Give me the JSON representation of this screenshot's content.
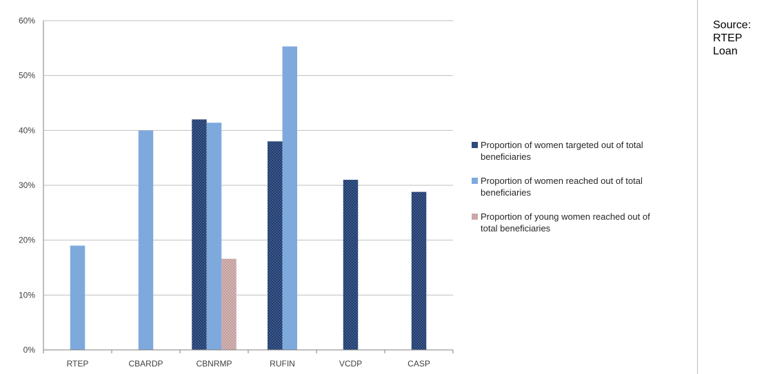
{
  "source_note": [
    "Source:",
    "RTEP",
    "Loan"
  ],
  "colors": {
    "targeted": "#1f3b6e",
    "reached": "#7ea9dd",
    "young": "#c19a9a",
    "grid": "#bfbfbf",
    "axis": "#7f7f7f"
  },
  "chart_data": {
    "type": "bar",
    "title": "",
    "xlabel": "",
    "ylabel": "",
    "categories": [
      "RTEP",
      "CBARDP",
      "CBNRMP",
      "RUFIN",
      "VCDP",
      "CASP"
    ],
    "ylim": [
      0,
      0.6
    ],
    "yticks": [
      0,
      0.1,
      0.2,
      0.3,
      0.4,
      0.5,
      0.6
    ],
    "ytick_labels": [
      "0%",
      "10%",
      "20%",
      "30%",
      "40%",
      "50%",
      "60%"
    ],
    "grid": true,
    "legend_position": "right",
    "series": [
      {
        "name": "Proportion of women targeted out of total beneficiaries",
        "legend_lines": [
          "Proportion of women targeted out of total",
          "beneficiaries"
        ],
        "color_key": "targeted",
        "pattern": "dotted",
        "values": [
          null,
          null,
          0.42,
          0.38,
          0.31,
          0.288
        ]
      },
      {
        "name": "Proportion of women reached out of total beneficiaries",
        "legend_lines": [
          "Proportion of women reached out of total",
          "beneficiaries"
        ],
        "color_key": "reached",
        "pattern": "plain",
        "values": [
          0.19,
          0.4,
          0.414,
          0.553,
          null,
          null
        ]
      },
      {
        "name": "Proportion of young women reached out of total beneficiaries",
        "legend_lines": [
          "Proportion of young women reached out of",
          "total beneficiaries"
        ],
        "color_key": "young",
        "pattern": "dotted",
        "values": [
          null,
          null,
          0.166,
          null,
          null,
          null
        ]
      }
    ]
  }
}
